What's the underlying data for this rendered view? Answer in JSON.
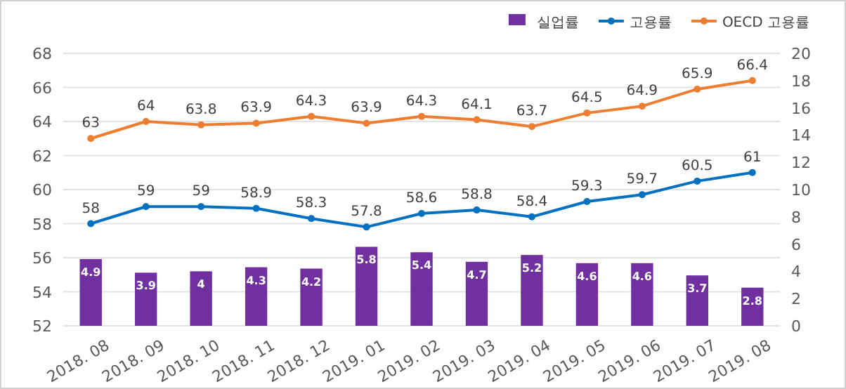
{
  "chart_data": {
    "type": "bar",
    "categories": [
      "2018. 08",
      "2018. 09",
      "2018. 10",
      "2018. 11",
      "2018. 12",
      "2019. 01",
      "2019. 02",
      "2019. 03",
      "2019. 04",
      "2019. 05",
      "2019. 06",
      "2019. 07",
      "2019. 08"
    ],
    "series": [
      {
        "name": "실업률",
        "axis": "y2",
        "color": "#7030a0",
        "values": [
          4.9,
          3.9,
          4,
          4.3,
          4.2,
          5.8,
          5.4,
          4.7,
          5.2,
          4.6,
          4.6,
          3.7,
          2.8
        ]
      },
      {
        "name": "고용률",
        "type": "line",
        "color": "#0070c0",
        "values": [
          58,
          59,
          59,
          58.9,
          58.3,
          57.8,
          58.6,
          58.8,
          58.4,
          59.3,
          59.7,
          60.5,
          61
        ]
      },
      {
        "name": "OECD 고용률",
        "type": "line",
        "color": "#ed7d31",
        "values": [
          63,
          64,
          63.8,
          63.9,
          64.3,
          63.9,
          64.3,
          64.1,
          63.7,
          64.5,
          64.9,
          65.9,
          66.4
        ]
      }
    ],
    "ylim": [
      52,
      68
    ],
    "yticks": [
      52,
      54,
      56,
      58,
      60,
      62,
      64,
      66,
      68
    ],
    "y2lim": [
      0,
      20
    ],
    "y2ticks": [
      0,
      2,
      4,
      6,
      8,
      10,
      12,
      14,
      16,
      18,
      20
    ],
    "grid": "y",
    "legend": "top right",
    "marker": "circle",
    "data_labels": true
  }
}
